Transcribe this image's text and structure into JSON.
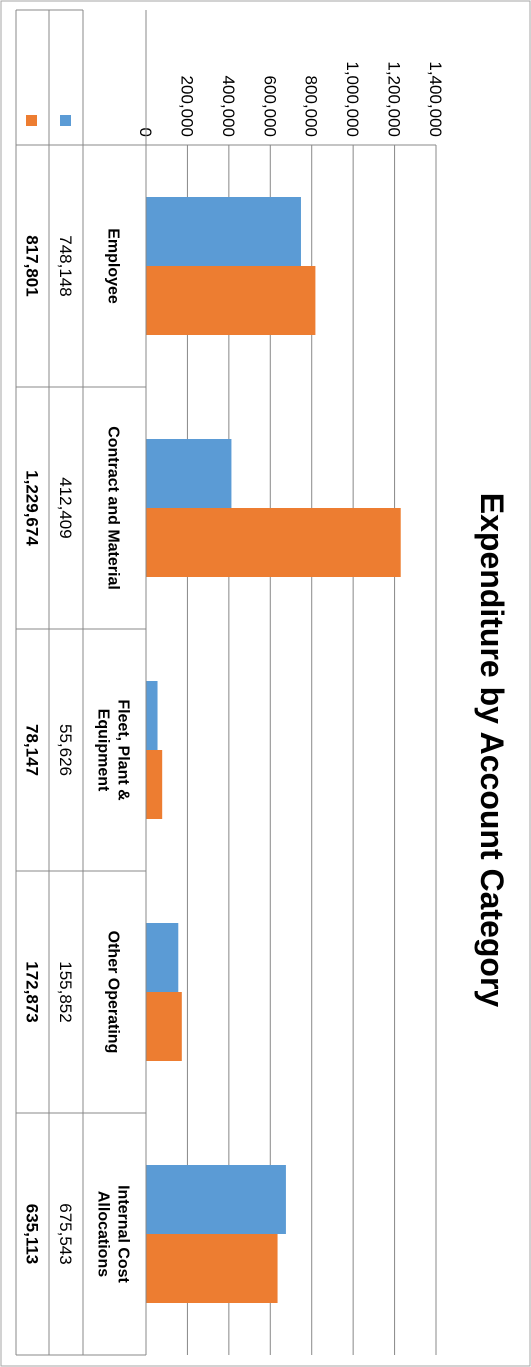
{
  "chart_data": {
    "type": "bar",
    "title": "Expenditure by Account Category",
    "categories": [
      [
        "Employee"
      ],
      [
        "Contract and Material"
      ],
      [
        "Fleet, Plant &",
        "Equipment"
      ],
      [
        "Other Operating"
      ],
      [
        "Internal Cost",
        "Allocations"
      ]
    ],
    "series": [
      {
        "color": "#5B9BD5",
        "values": [
          748148,
          412409,
          55626,
          155852,
          675543
        ]
      },
      {
        "color": "#ED7D31",
        "values": [
          817801,
          1229674,
          78147,
          172873,
          635113
        ]
      }
    ],
    "value_labels": [
      [
        "748,148",
        "412,409",
        "55,626",
        "155,852",
        "675,543"
      ],
      [
        "817,801",
        "1,229,674",
        "78,147",
        "172,873",
        "635,113"
      ]
    ],
    "ylim": [
      0,
      1400000
    ],
    "yticks": [
      0,
      200000,
      400000,
      600000,
      800000,
      1000000,
      1200000,
      1400000
    ],
    "ytick_labels": [
      "0",
      "200,000",
      "400,000",
      "600,000",
      "800,000",
      "1,000,000",
      "1,200,000",
      "1,400,000"
    ],
    "grid": true,
    "legend": "data-table"
  }
}
